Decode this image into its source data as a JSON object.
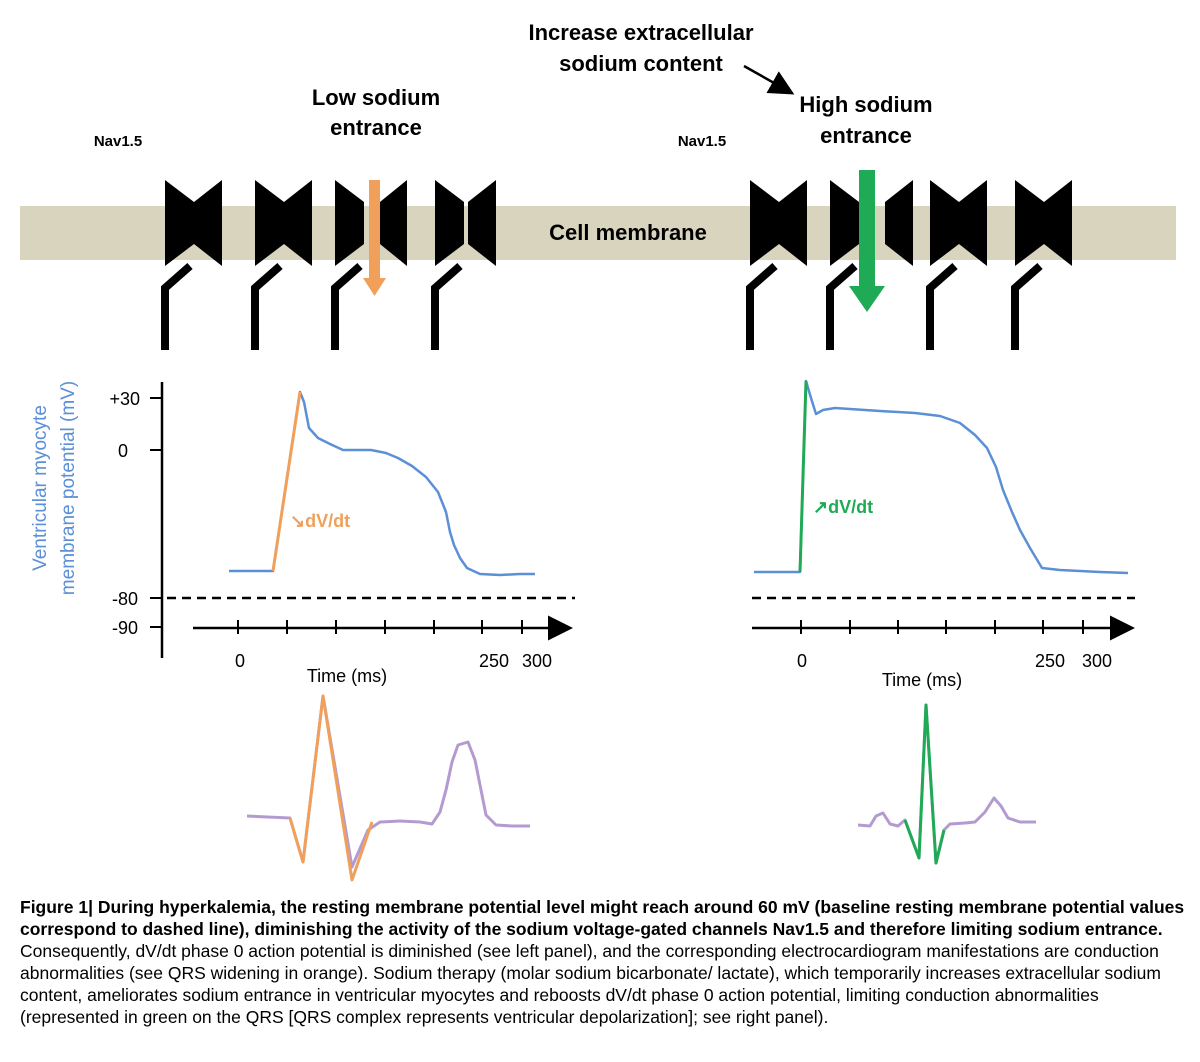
{
  "header": {
    "increase_line1": "Increase extracellular",
    "increase_line2": "sodium content"
  },
  "left_panel": {
    "channel_label": "Nav1.5",
    "entrance_line1": "Low sodium",
    "entrance_line2": "entrance",
    "dvdt_label": "↘dV/dt",
    "x_label": "Time (ms)",
    "x_ticks": [
      "0",
      "250",
      "300"
    ]
  },
  "right_panel": {
    "channel_label": "Nav1.5",
    "entrance_line1": "High sodium",
    "entrance_line2": "entrance",
    "dvdt_label": "↗dV/dt",
    "x_label": "Time (ms)",
    "x_ticks": [
      "0",
      "250",
      "300"
    ]
  },
  "membrane_label": "Cell membrane",
  "y_axis": {
    "label_line1": "Ventricular myocyte",
    "label_line2": "membrane potential (mV)",
    "ticks": [
      "+30",
      "0",
      "-80",
      "-90"
    ]
  },
  "caption": {
    "bold": "Figure 1| During hyperkalemia, the resting membrane potential level might reach around 60 mV (baseline resting membrane potential values correspond to dashed line), diminishing the activity of the sodium voltage-gated channels Nav1.5 and therefore limiting sodium entrance.",
    "normal": " Consequently, dV/dt phase 0 action potential is diminished (see left panel), and the corresponding electrocardiogram manifestations are conduction abnormalities (see QRS widening in orange). Sodium therapy (molar sodium bicarbonate/ lactate), which temporarily increases extracellular sodium content, ameliorates sodium entrance in ventricular myocytes and reboosts dV/dt phase 0 action potential, limiting conduction abnormalities (represented in green on the QRS [QRS complex represents ventricular depolarization]; see right panel)."
  },
  "colors": {
    "membrane": "#d9d4bd",
    "action_potential": "#5b8fd6",
    "low_entrance": "#f0a05a",
    "high_entrance": "#1faa55",
    "ecg": "#b39bd1",
    "ylabel": "#5b8fd6"
  }
}
